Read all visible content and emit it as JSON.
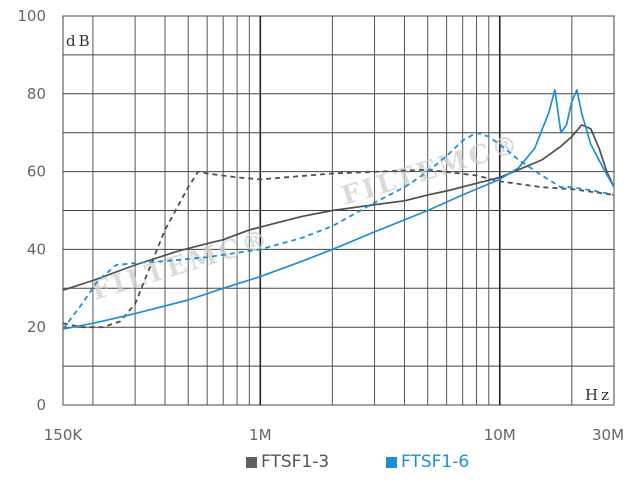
{
  "chart_data": {
    "type": "line",
    "x_scale": "log",
    "xlim": [
      "150K",
      "30M"
    ],
    "ylim": [
      0,
      100
    ],
    "xlabel": "Hz",
    "ylabel": "dB",
    "grid": true,
    "legend_position": "bottom-center",
    "x_tick_labels": [
      "150K",
      "1M",
      "10M",
      "30M"
    ],
    "y_tick_labels": [
      "0",
      "20",
      "40",
      "60",
      "80",
      "100"
    ],
    "watermark": "FILTEMC®",
    "series": [
      {
        "name": "FTSF1-3",
        "legend_label": "FTSF1-3",
        "color": "#4f4f4f",
        "legend_color": "#606060",
        "curves": [
          {
            "style": "solid",
            "points": [
              [
                150000,
                29.5
              ],
              [
                200000,
                32
              ],
              [
                300000,
                36
              ],
              [
                450000,
                39.5
              ],
              [
                600000,
                41.5
              ],
              [
                700000,
                42.5
              ],
              [
                900000,
                45
              ],
              [
                1200000,
                47
              ],
              [
                1500000,
                48.5
              ],
              [
                2000000,
                50
              ],
              [
                3000000,
                51.5
              ],
              [
                4000000,
                52.5
              ],
              [
                5000000,
                54
              ],
              [
                6000000,
                55
              ],
              [
                8000000,
                57
              ],
              [
                10000000,
                58.5
              ],
              [
                12000000,
                60.5
              ],
              [
                15000000,
                63
              ],
              [
                18000000,
                66.5
              ],
              [
                20000000,
                69
              ],
              [
                22000000,
                72
              ],
              [
                24000000,
                71
              ],
              [
                26000000,
                66
              ],
              [
                28000000,
                60
              ],
              [
                30000000,
                56
              ]
            ]
          },
          {
            "style": "dashed",
            "points": [
              [
                150000,
                21
              ],
              [
                180000,
                20
              ],
              [
                220000,
                20
              ],
              [
                260000,
                21.5
              ],
              [
                300000,
                26
              ],
              [
                400000,
                45
              ],
              [
                500000,
                56
              ],
              [
                550000,
                60
              ],
              [
                600000,
                59.5
              ],
              [
                800000,
                58.5
              ],
              [
                1000000,
                58
              ],
              [
                2000000,
                59.5
              ],
              [
                5000000,
                60.5
              ],
              [
                8000000,
                59
              ],
              [
                10000000,
                57.5
              ],
              [
                15000000,
                56
              ],
              [
                20000000,
                55.5
              ],
              [
                30000000,
                54
              ]
            ]
          }
        ]
      },
      {
        "name": "FTSF1-6",
        "legend_label": "FTSF1-6",
        "color": "#1e90d2",
        "legend_color": "#1e90d2",
        "curves": [
          {
            "style": "solid",
            "points": [
              [
                150000,
                19.5
              ],
              [
                200000,
                21
              ],
              [
                300000,
                23.5
              ],
              [
                500000,
                27
              ],
              [
                700000,
                30
              ],
              [
                1000000,
                33
              ],
              [
                1500000,
                37
              ],
              [
                2000000,
                40
              ],
              [
                3000000,
                44.5
              ],
              [
                5000000,
                50
              ],
              [
                7000000,
                54
              ],
              [
                10000000,
                58
              ],
              [
                12000000,
                61
              ],
              [
                14000000,
                66
              ],
              [
                16000000,
                75
              ],
              [
                17000000,
                81
              ],
              [
                18000000,
                70
              ],
              [
                19000000,
                72
              ],
              [
                20000000,
                78
              ],
              [
                21000000,
                81
              ],
              [
                22000000,
                75
              ],
              [
                24000000,
                67
              ],
              [
                27000000,
                61
              ],
              [
                30000000,
                56
              ]
            ]
          },
          {
            "style": "dashed",
            "points": [
              [
                150000,
                19.5
              ],
              [
                180000,
                26
              ],
              [
                210000,
                32
              ],
              [
                250000,
                36
              ],
              [
                300000,
                36.5
              ],
              [
                400000,
                37
              ],
              [
                600000,
                38
              ],
              [
                1000000,
                40
              ],
              [
                1500000,
                43
              ],
              [
                2000000,
                46
              ],
              [
                3000000,
                52
              ],
              [
                4000000,
                56
              ],
              [
                5000000,
                60
              ],
              [
                6000000,
                64
              ],
              [
                7000000,
                68
              ],
              [
                8000000,
                70
              ],
              [
                9000000,
                69
              ],
              [
                10000000,
                67
              ],
              [
                12000000,
                63
              ],
              [
                15000000,
                59
              ],
              [
                18000000,
                56
              ],
              [
                20000000,
                56
              ],
              [
                25000000,
                55
              ],
              [
                30000000,
                54
              ]
            ]
          }
        ]
      }
    ]
  }
}
